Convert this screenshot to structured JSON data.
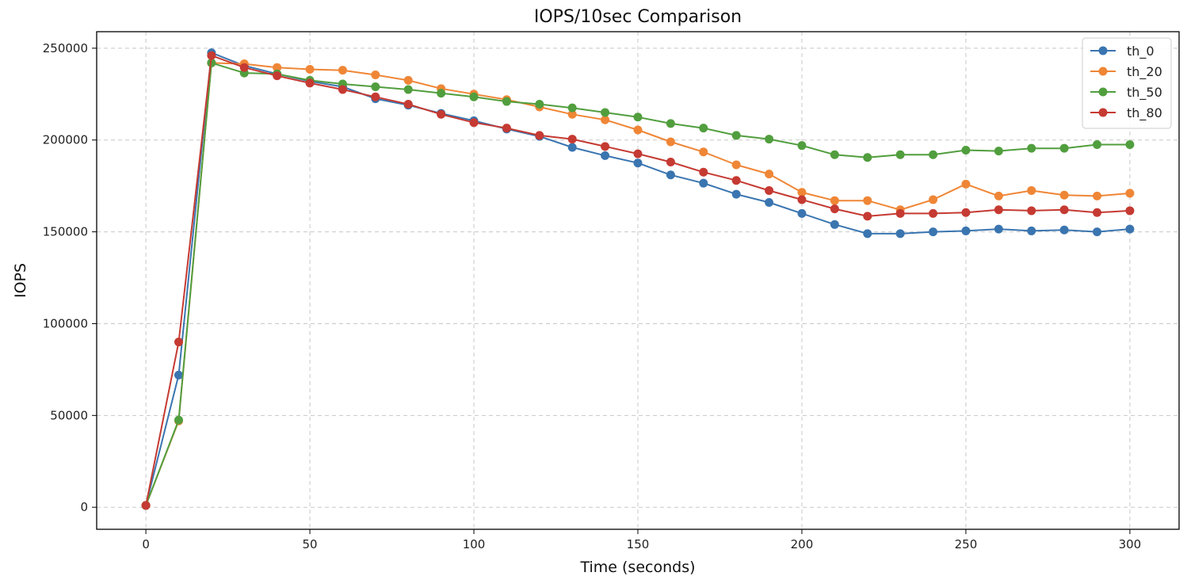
{
  "chart_data": {
    "type": "line",
    "title": "IOPS/10sec Comparison",
    "xlabel": "Time (seconds)",
    "ylabel": "IOPS",
    "xlim": [
      -15,
      315
    ],
    "ylim": [
      -12000,
      259000
    ],
    "xticks": [
      0,
      50,
      100,
      150,
      200,
      250,
      300
    ],
    "yticks": [
      0,
      50000,
      100000,
      150000,
      200000,
      250000
    ],
    "grid": true,
    "grid_style": "dashed",
    "legend_position": "top-right",
    "x": [
      0,
      10,
      20,
      30,
      40,
      50,
      60,
      70,
      80,
      90,
      100,
      110,
      120,
      130,
      140,
      150,
      160,
      170,
      180,
      190,
      200,
      210,
      220,
      230,
      240,
      250,
      260,
      270,
      280,
      290,
      300
    ],
    "series": [
      {
        "name": "th_0",
        "color": "#3a75b0",
        "values": [
          1000,
          72000,
          247500,
          240500,
          236000,
          232000,
          229000,
          222500,
          219000,
          214500,
          210500,
          206000,
          202000,
          196000,
          191500,
          187500,
          181000,
          176500,
          170500,
          166000,
          160000,
          154000,
          149000,
          149000,
          150000,
          150500,
          151500,
          150500,
          151000,
          150000,
          151500
        ]
      },
      {
        "name": "th_20",
        "color": "#ef8636",
        "values": [
          1000,
          47000,
          242000,
          241500,
          239500,
          238500,
          238000,
          235500,
          232500,
          228000,
          225000,
          222000,
          218000,
          214000,
          211000,
          205500,
          199000,
          193500,
          186500,
          181500,
          171500,
          167000,
          167000,
          162000,
          167500,
          176000,
          169500,
          172500,
          170000,
          169500,
          171000
        ]
      },
      {
        "name": "th_50",
        "color": "#519e3e",
        "values": [
          1000,
          47500,
          242000,
          236500,
          236000,
          232500,
          230500,
          229000,
          227500,
          225500,
          223500,
          221000,
          219500,
          217500,
          215000,
          212500,
          209000,
          206500,
          202500,
          200500,
          197000,
          192000,
          190500,
          192000,
          192000,
          194500,
          194000,
          195500,
          195500,
          197500,
          197500
        ]
      },
      {
        "name": "th_80",
        "color": "#c53a32",
        "values": [
          1000,
          90000,
          246000,
          239500,
          235000,
          231000,
          227500,
          223500,
          219500,
          214000,
          209500,
          206500,
          202500,
          200500,
          196500,
          192500,
          188000,
          182500,
          178000,
          172500,
          167500,
          162500,
          158500,
          160000,
          160000,
          160500,
          162000,
          161500,
          162000,
          160500,
          161500
        ]
      }
    ]
  }
}
